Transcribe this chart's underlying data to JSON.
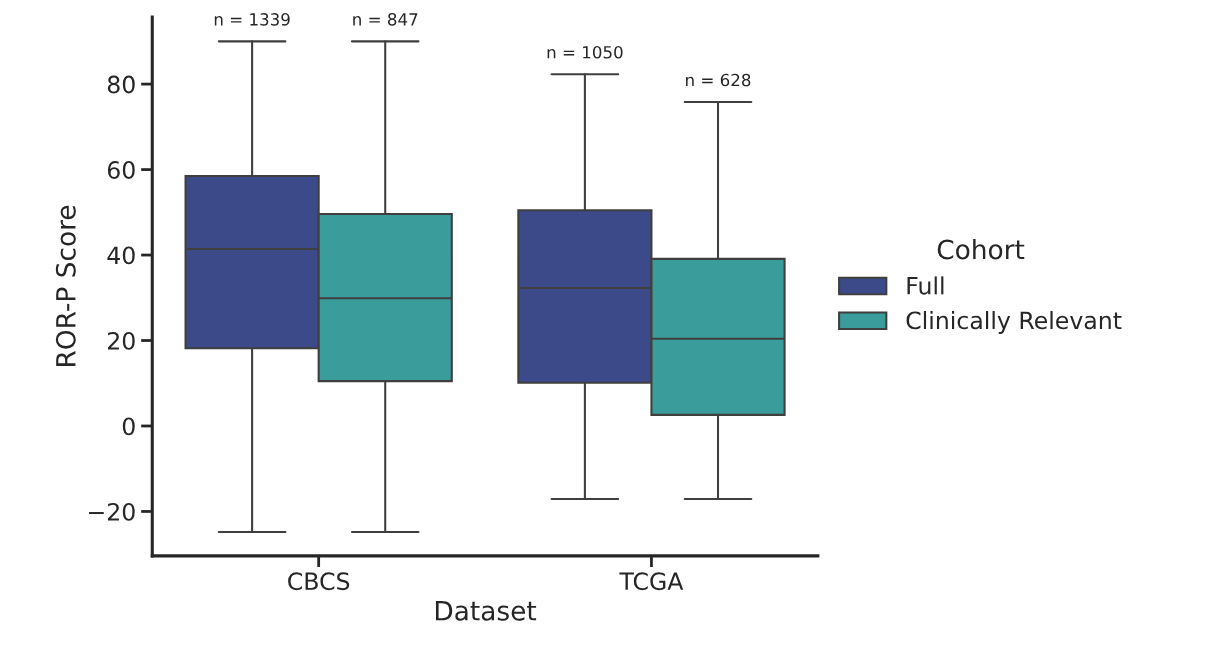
{
  "chart_data": {
    "type": "box",
    "xlabel": "Dataset",
    "ylabel": "ROR-P Score",
    "legend_title": "Cohort",
    "categories": [
      "CBCS",
      "TCGA"
    ],
    "series": [
      {
        "name": "Full",
        "color": "#3d4a89",
        "boxes": [
          {
            "low": -24.8,
            "q1": 18.2,
            "median": 41.4,
            "q3": 58.5,
            "high": 90.0
          },
          {
            "low": -17.1,
            "q1": 10.1,
            "median": 32.3,
            "q3": 50.5,
            "high": 82.3
          }
        ]
      },
      {
        "name": "Clinically Relevant",
        "color": "#3a9c9b",
        "boxes": [
          {
            "low": -24.8,
            "q1": 10.5,
            "median": 29.9,
            "q3": 49.6,
            "high": 90.0
          },
          {
            "low": -17.1,
            "q1": 2.6,
            "median": 20.4,
            "q3": 39.1,
            "high": 75.8
          }
        ]
      }
    ],
    "annotations": [
      "n = 1339",
      "n = 847",
      "n = 1050",
      "n = 628"
    ],
    "ylim": [
      -30.4,
      95.7
    ],
    "yticks": [
      {
        "value": -20,
        "label": "−20"
      },
      0,
      20,
      40,
      60,
      80
    ],
    "grid": false,
    "legend": "right"
  }
}
